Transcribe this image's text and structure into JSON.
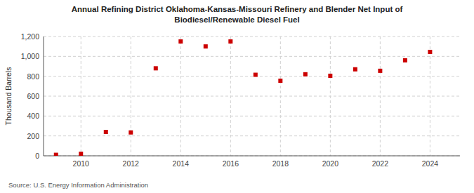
{
  "chart_data": {
    "type": "scatter",
    "title": "Annual Refining District Oklahoma-Kansas-Missouri Refinery and Blender Net Input of\nBiodiesel/Renewable Diesel Fuel",
    "ylabel": "Thousand Barrels",
    "source": "Source: U.S. Energy Information Administration",
    "x": [
      2009,
      2010,
      2011,
      2012,
      2013,
      2014,
      2015,
      2016,
      2017,
      2018,
      2019,
      2020,
      2021,
      2022,
      2023,
      2024
    ],
    "values": [
      10,
      20,
      240,
      235,
      880,
      1150,
      1100,
      1150,
      815,
      755,
      820,
      805,
      870,
      855,
      960,
      1045
    ],
    "color": "#cc0000",
    "marker": "square",
    "grid": true,
    "xlim": [
      2008.5,
      2025.2
    ],
    "xticks": [
      2010,
      2012,
      2014,
      2016,
      2018,
      2020,
      2022,
      2024
    ],
    "ylim": [
      0,
      1200
    ],
    "yticks": [
      0,
      200,
      400,
      600,
      800,
      {
        "value": 1000,
        "label": "1,000"
      },
      {
        "value": 1200,
        "label": "1,200"
      }
    ]
  }
}
